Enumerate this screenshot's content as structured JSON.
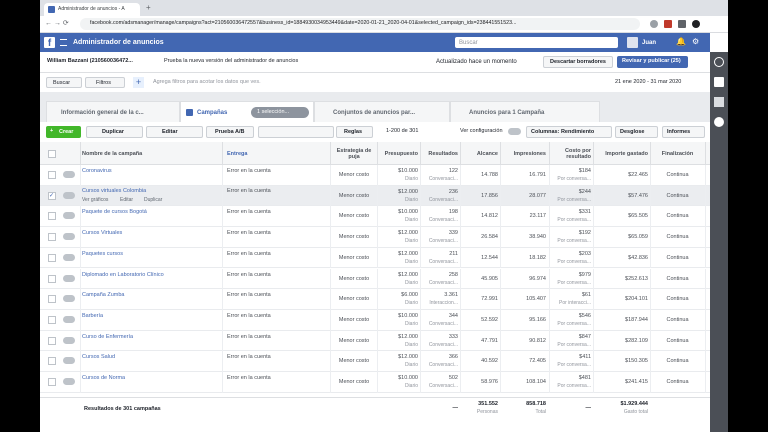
{
  "browser": {
    "tab_title": "Administrador de anuncios - A",
    "url": "facebook.com/adsmanager/manage/campaigns?act=210560036472557&business_id=1884930034953449&date=2020-01-21_2020-04-01&selected_campaign_ids=238441551523..."
  },
  "header": {
    "title": "Administrador de anuncios",
    "search": "Buscar",
    "user": "Juan"
  },
  "account_bar": {
    "account": "William Bazzani (210560036472...",
    "new_version": "Prueba la nueva versión del administrador de anuncios",
    "updated": "Actualizado hace un momento",
    "discard": "Descartar borradores",
    "publish": "Revisar y publicar (25)"
  },
  "filter_bar": {
    "search": "Buscar",
    "filters": "Filtros",
    "placeholder": "Agrega filtros para acotar los datos que ves.",
    "date_range": "21 ene 2020 - 31 mar 2020"
  },
  "tabs": {
    "overview": "Información general de la c...",
    "campaigns": "Campañas",
    "selection": "1 selección...",
    "ad_sets": "Conjuntos de anuncios par...",
    "ads": "Anuncios para 1 Campaña"
  },
  "toolbar": {
    "create": "Crear",
    "duplicate": "Duplicar",
    "edit": "Editar",
    "ab_test": "Prueba A/B",
    "rules": "Reglas",
    "pagination": "1-200 de 301",
    "view_settings": "Ver configuración",
    "columns": "Columnas: Rendimiento",
    "breakdown": "Desglose",
    "reports": "Informes"
  },
  "table": {
    "columns": [
      "Nombre de la campaña",
      "Entrega",
      "Estrategia de puja",
      "Presupuesto",
      "Resultados",
      "Alcance",
      "Impresiones",
      "Costo por resultado",
      "Importe gastado",
      "Finalización"
    ],
    "row_actions": [
      "Ver gráficos",
      "Editar",
      "Duplicar"
    ],
    "rows": [
      {
        "name": "Coronavirus",
        "delivery": "Error en la cuenta",
        "bid": "Menor costo",
        "budget": "$10.000",
        "period": "Diario",
        "results": "122",
        "results_type": "Conversaci...",
        "reach": "14.788",
        "impressions": "16.791",
        "cost": "$184",
        "cost_type": "Por conversa...",
        "spent": "$22.465",
        "end": "Continua"
      },
      {
        "name": "Cursos virtuales Colombia",
        "delivery": "Error en la cuenta",
        "bid": "Menor costo",
        "budget": "$12.000",
        "period": "Diario",
        "results": "236",
        "results_type": "Conversaci...",
        "reach": "17.856",
        "impressions": "28.077",
        "cost": "$244",
        "cost_type": "Por conversa...",
        "spent": "$57.476",
        "end": "Continua"
      },
      {
        "name": "Paquete de cursos Bogotá",
        "delivery": "Error en la cuenta",
        "bid": "Menor costo",
        "budget": "$10.000",
        "period": "Diario",
        "results": "198",
        "results_type": "Conversaci...",
        "reach": "14.812",
        "impressions": "23.117",
        "cost": "$331",
        "cost_type": "Por conversa...",
        "spent": "$65.505",
        "end": "Continua"
      },
      {
        "name": "Cursos Virtuales",
        "delivery": "Error en la cuenta",
        "bid": "Menor costo",
        "budget": "$12.000",
        "period": "Diario",
        "results": "339",
        "results_type": "Conversaci...",
        "reach": "26.584",
        "impressions": "38.940",
        "cost": "$192",
        "cost_type": "Por conversa...",
        "spent": "$65.059",
        "end": "Continua"
      },
      {
        "name": "Paquetes cursos",
        "delivery": "Error en la cuenta",
        "bid": "Menor costo",
        "budget": "$12.000",
        "period": "Diario",
        "results": "211",
        "results_type": "Conversaci...",
        "reach": "12.544",
        "impressions": "18.182",
        "cost": "$203",
        "cost_type": "Por conversa...",
        "spent": "$42.836",
        "end": "Continua"
      },
      {
        "name": "Diplomado en Laboratorio Clínico",
        "delivery": "Error en la cuenta",
        "bid": "Menor costo",
        "budget": "$12.000",
        "period": "Diario",
        "results": "258",
        "results_type": "Conversaci...",
        "reach": "45.905",
        "impressions": "96.974",
        "cost": "$979",
        "cost_type": "Por conversa...",
        "spent": "$252.613",
        "end": "Continua"
      },
      {
        "name": "Campaña Zumba",
        "delivery": "Error en la cuenta",
        "bid": "Menor costo",
        "budget": "$6.000",
        "period": "Diario",
        "results": "3.361",
        "results_type": "Interaccion...",
        "reach": "72.991",
        "impressions": "105.407",
        "cost": "$61",
        "cost_type": "Por interacci...",
        "spent": "$204.101",
        "end": "Continua"
      },
      {
        "name": "Barbería",
        "delivery": "Error en la cuenta",
        "bid": "Menor costo",
        "budget": "$10.000",
        "period": "Diario",
        "results": "344",
        "results_type": "Conversaci...",
        "reach": "52.592",
        "impressions": "95.166",
        "cost": "$546",
        "cost_type": "Por conversa...",
        "spent": "$187.944",
        "end": "Continua"
      },
      {
        "name": "Curso de Enfermería",
        "delivery": "Error en la cuenta",
        "bid": "Menor costo",
        "budget": "$12.000",
        "period": "Diario",
        "results": "333",
        "results_type": "Conversaci...",
        "reach": "47.791",
        "impressions": "90.812",
        "cost": "$847",
        "cost_type": "Por conversa...",
        "spent": "$282.109",
        "end": "Continua"
      },
      {
        "name": "Cursos Salud",
        "delivery": "Error en la cuenta",
        "bid": "Menor costo",
        "budget": "$12.000",
        "period": "Diario",
        "results": "366",
        "results_type": "Conversaci...",
        "reach": "40.592",
        "impressions": "72.405",
        "cost": "$411",
        "cost_type": "Por conversa...",
        "spent": "$150.305",
        "end": "Continua"
      },
      {
        "name": "Cursos de Norma",
        "delivery": "Error en la cuenta",
        "bid": "Menor costo",
        "budget": "$10.000",
        "period": "Diario",
        "results": "502",
        "results_type": "Conversaci...",
        "reach": "58.976",
        "impressions": "108.104",
        "cost": "$481",
        "cost_type": "Por conversa...",
        "spent": "$241.415",
        "end": "Continua"
      }
    ],
    "footer": {
      "label": "Resultados de 301 campañas",
      "results": "—",
      "reach": "351.552",
      "reach_unit": "Personas",
      "impressions": "858.718",
      "impressions_unit": "Total",
      "cost": "—",
      "spent": "$1.929.444",
      "spent_unit": "Gasto total"
    }
  }
}
